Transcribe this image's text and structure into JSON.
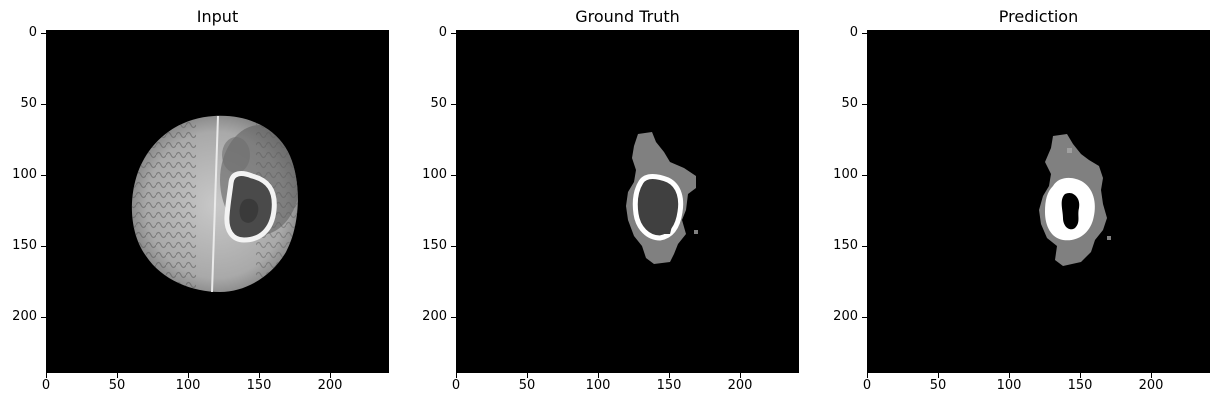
{
  "panels": [
    {
      "title": "Input",
      "kind": "mri"
    },
    {
      "title": "Ground Truth",
      "kind": "gt"
    },
    {
      "title": "Prediction",
      "kind": "pred"
    }
  ],
  "axes": {
    "xticks": [
      "0",
      "50",
      "100",
      "150",
      "200"
    ],
    "yticks": [
      "0",
      "50",
      "100",
      "150",
      "200"
    ]
  },
  "colors": {
    "background": "#000000",
    "edema": "#808080",
    "enhancing": "#ffffff",
    "necrotic": "#404040"
  }
}
